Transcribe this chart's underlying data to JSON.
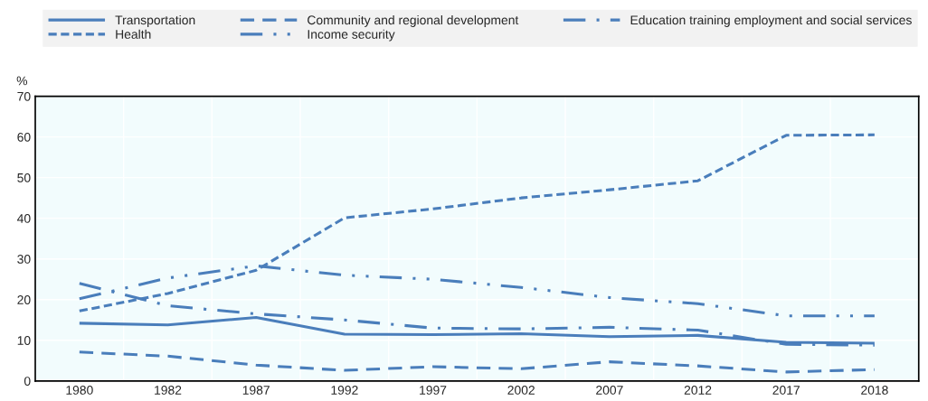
{
  "chart_data": {
    "type": "line",
    "ylabel": "%",
    "categories": [
      "1980",
      "1982",
      "1987",
      "1992",
      "1997",
      "2002",
      "2007",
      "2012",
      "2017",
      "2018"
    ],
    "series": [
      {
        "name": "Transportation",
        "color": "#4a7ebb",
        "line_style": "solid",
        "values": [
          14.2,
          13.8,
          15.6,
          11.5,
          11.4,
          11.6,
          10.9,
          11.2,
          9.5,
          9.3
        ]
      },
      {
        "name": "Community and regional development",
        "color": "#4a7ebb",
        "line_style": "dashed",
        "values": [
          7.1,
          6.1,
          3.9,
          2.6,
          3.5,
          3.0,
          4.7,
          3.7,
          2.2,
          2.8
        ]
      },
      {
        "name": "Education training employment and social services",
        "color": "#4a7ebb",
        "line_style": "dashdot",
        "values": [
          24.0,
          18.5,
          16.5,
          15.0,
          13.0,
          12.8,
          13.2,
          12.5,
          9.0,
          8.8
        ]
      },
      {
        "name": "Health",
        "color": "#4a7ebb",
        "line_style": "dotted",
        "values": [
          17.2,
          21.5,
          27.2,
          40.1,
          42.3,
          45.0,
          47.0,
          49.2,
          60.4,
          60.5
        ]
      },
      {
        "name": "Income security",
        "color": "#4a7ebb",
        "line_style": "dashdotdot",
        "values": [
          20.2,
          25.3,
          28.3,
          26.0,
          25.0,
          23.0,
          20.5,
          19.0,
          16.0,
          16.0
        ]
      }
    ],
    "ylim": [
      0,
      70
    ],
    "yticks": [
      0,
      10,
      20,
      30,
      40,
      50,
      60,
      70
    ],
    "grid": true,
    "legend": "top",
    "marker": "none"
  }
}
